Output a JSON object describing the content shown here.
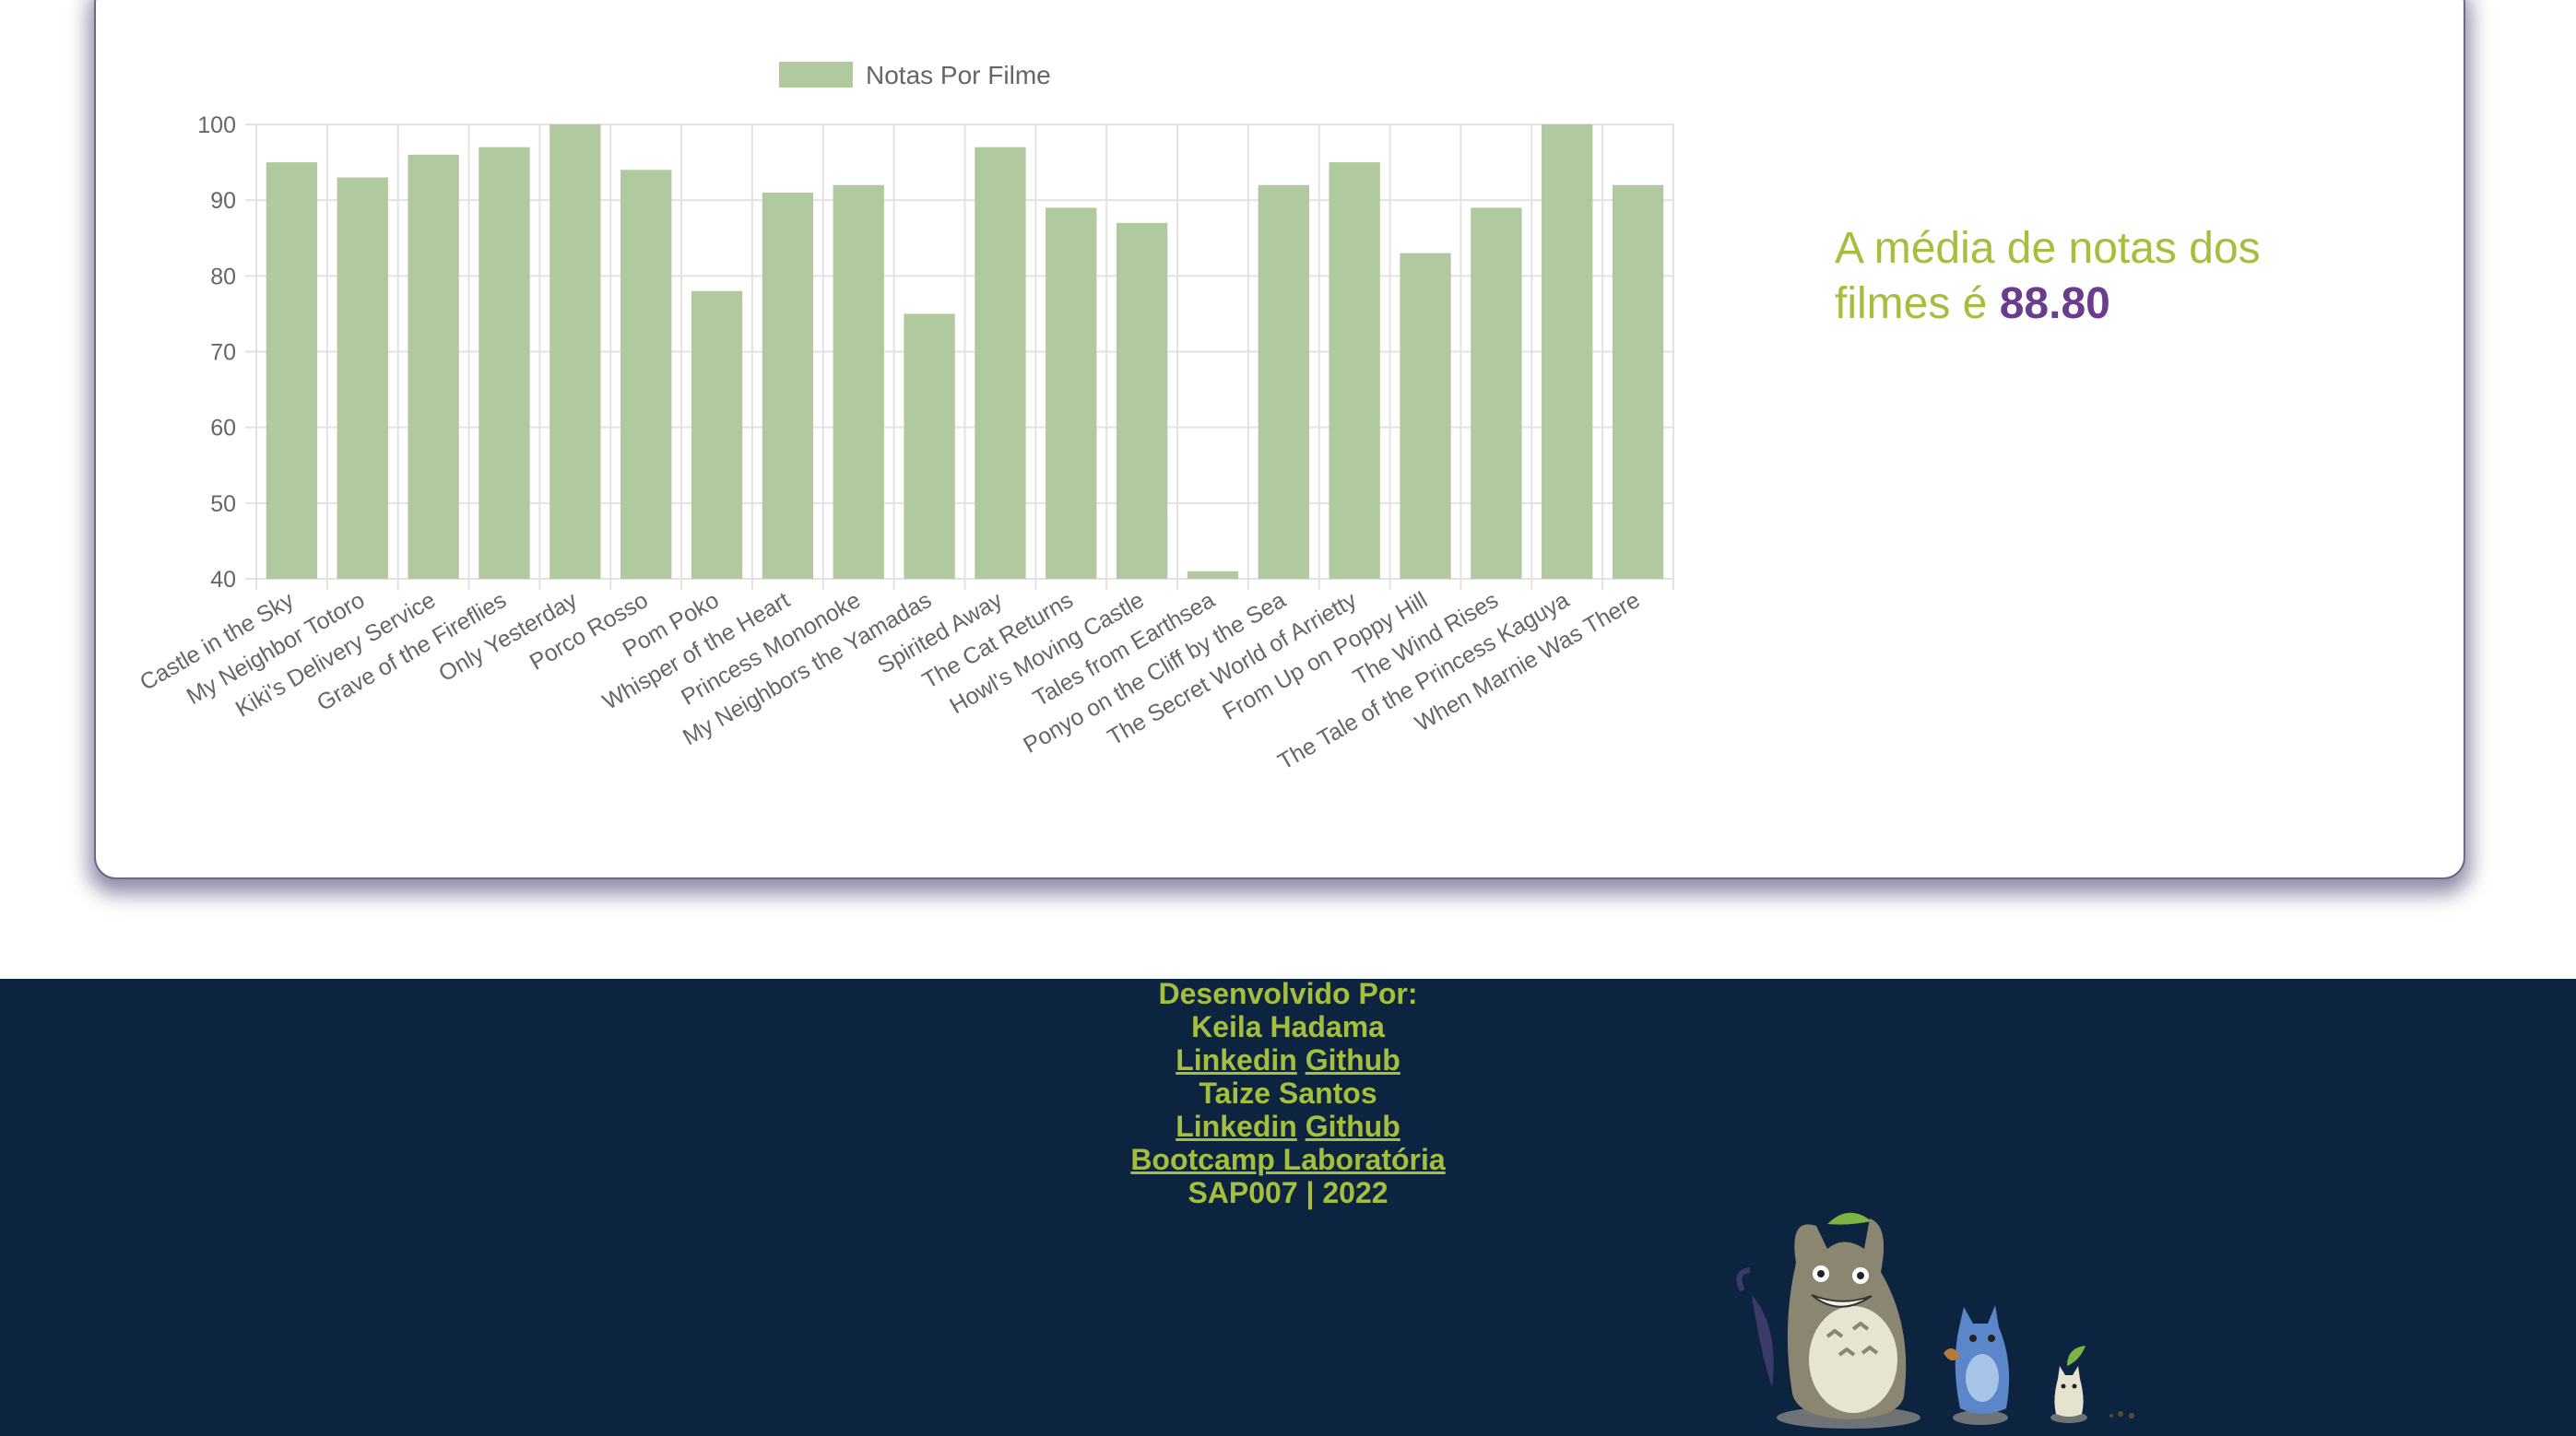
{
  "chart_data": {
    "type": "bar",
    "legend": {
      "label": "Notas Por Filme",
      "placement": "top"
    },
    "categories": [
      "Castle in the Sky",
      "My Neighbor Totoro",
      "Kiki's Delivery Service",
      "Grave of the Fireflies",
      "Only Yesterday",
      "Porco Rosso",
      "Pom Poko",
      "Whisper of the Heart",
      "Princess Mononoke",
      "My Neighbors the Yamadas",
      "Spirited Away",
      "The Cat Returns",
      "Howl's Moving Castle",
      "Tales from Earthsea",
      "Ponyo on the Cliff by the Sea",
      "The Secret World of Arrietty",
      "From Up on Poppy Hill",
      "The Wind Rises",
      "The Tale of the Princess Kaguya",
      "When Marnie Was There"
    ],
    "series": [
      {
        "name": "Notas Por Filme",
        "color": "#b1c99f",
        "values": [
          95,
          93,
          96,
          97,
          100,
          94,
          78,
          91,
          92,
          75,
          97,
          89,
          87,
          41,
          92,
          95,
          83,
          89,
          100,
          92
        ]
      }
    ],
    "ylim": [
      40,
      100
    ],
    "yticks": [
      "100",
      "90",
      "80",
      "70",
      "60",
      "50",
      "40"
    ],
    "grid": true,
    "title": "",
    "xlabel": "",
    "ylabel": ""
  },
  "average": {
    "prefix": "A média de notas dos filmes é",
    "value": "88.80"
  },
  "footer": {
    "developed_by": "Desenvolvido Por:",
    "dev1_name": "Keila Hadama",
    "dev1_linkedin": "Linkedin",
    "dev1_github": "Github",
    "dev2_name": "Taize Santos",
    "dev2_linkedin": "Linkedin",
    "dev2_github": "Github",
    "bootcamp": "Bootcamp Laboratória",
    "cohort": "SAP007 | 2022"
  },
  "colors": {
    "background": "#ffffff",
    "footer_bg": "#0d2440",
    "accent_green": "#a6be3e",
    "average_purple": "#6a3c8e",
    "bar_fill": "#b1c99f"
  },
  "icons": [
    "totoro-family-illustration"
  ]
}
